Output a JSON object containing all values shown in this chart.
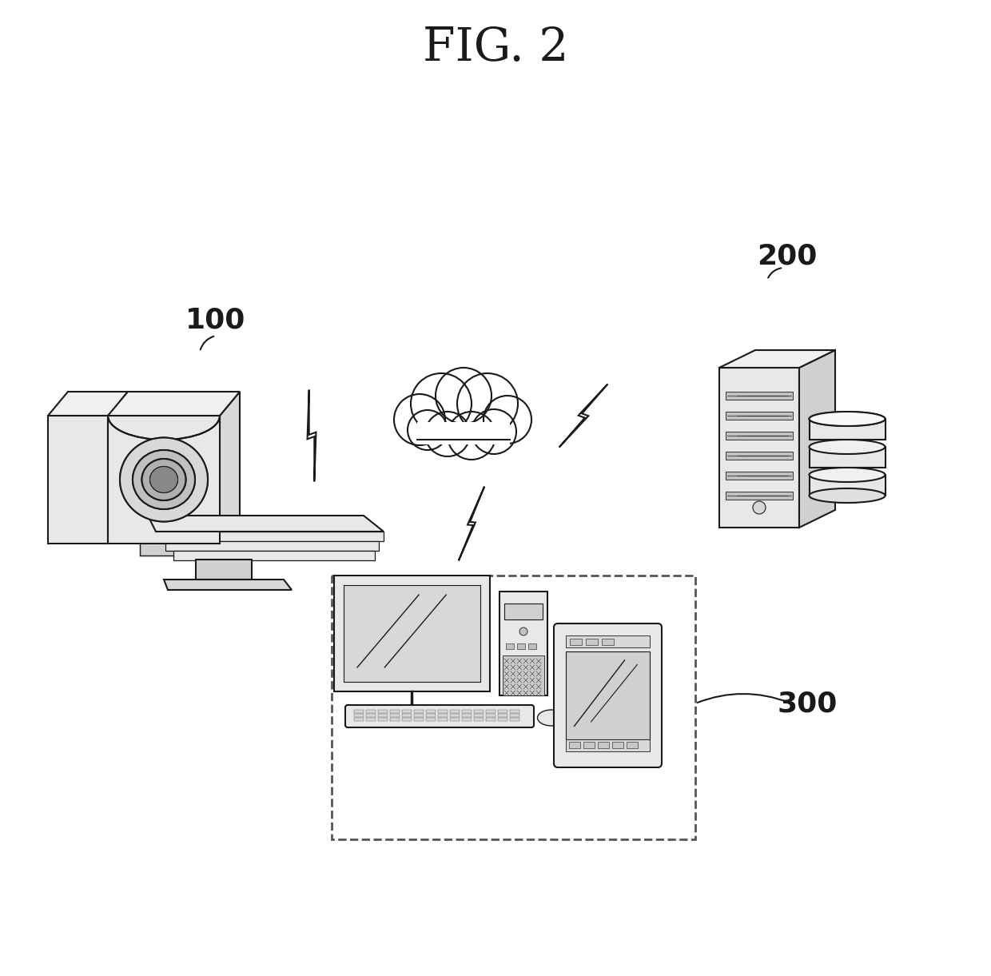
{
  "title": "FIG. 2",
  "title_fontsize": 42,
  "background_color": "#ffffff",
  "label_100": "100",
  "label_200": "200",
  "label_300": "300",
  "label_fontsize": 26,
  "line_color": "#1a1a1a",
  "line_width": 1.4
}
